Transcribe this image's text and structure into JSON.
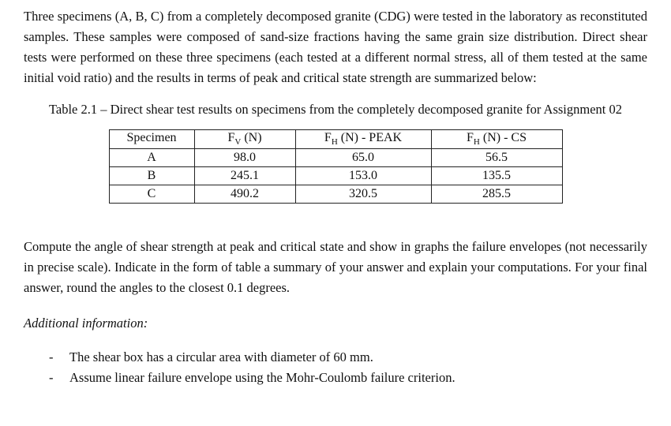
{
  "intro": "Three specimens (A, B, C) from a completely decomposed granite (CDG) were tested in the laboratory as reconstituted samples. These samples were composed of sand-size fractions having the same grain size distribution. Direct shear tests were performed on these three specimens (each tested at a different normal stress, all of them tested at the same initial void ratio) and the results in terms of peak and critical state strength are summarized below:",
  "caption": "Table 2.1 – Direct shear test results on specimens from the completely decomposed granite for Assignment 02",
  "table": {
    "headers": [
      {
        "pre": "Specimen",
        "sub": "",
        "post": ""
      },
      {
        "pre": "F",
        "sub": "V",
        "post": " (N)"
      },
      {
        "pre": "F",
        "sub": "H",
        "post": " (N) - PEAK"
      },
      {
        "pre": "F",
        "sub": "H",
        "post": " (N) - CS"
      }
    ],
    "rows": [
      {
        "specimen": "A",
        "fv": "98.0",
        "fh_peak": "65.0",
        "fh_cs": "56.5"
      },
      {
        "specimen": "B",
        "fv": "245.1",
        "fh_peak": "153.0",
        "fh_cs": "135.5"
      },
      {
        "specimen": "C",
        "fv": "490.2",
        "fh_peak": "320.5",
        "fh_cs": "285.5"
      }
    ]
  },
  "task": "Compute the angle of shear strength at peak and critical state and show in graphs the failure envelopes (not necessarily in precise scale). Indicate in the form of table a summary of your answer and explain your computations. For your final answer, round the angles to the closest 0.1 degrees.",
  "additional_heading": "Additional information:",
  "bullets": [
    {
      "marker": "-",
      "text": "The shear box has a circular area with diameter of 60 mm."
    },
    {
      "marker": "-",
      "text": "Assume linear failure envelope using the Mohr-Coulomb failure criterion."
    }
  ]
}
